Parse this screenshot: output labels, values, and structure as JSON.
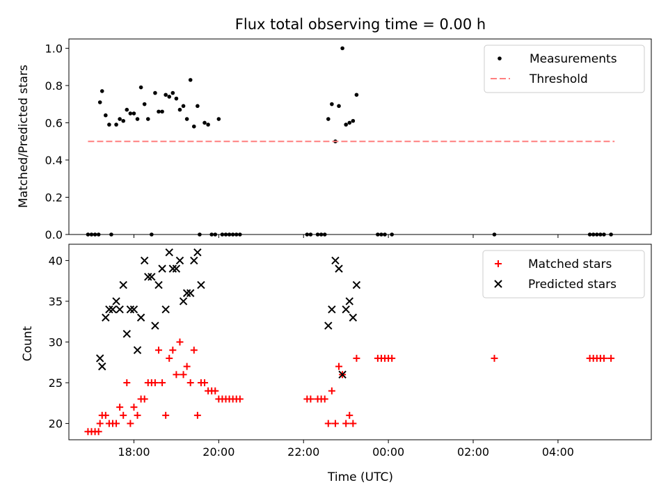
{
  "chart_data": [
    {
      "type": "scatter",
      "title": "Flux total observing time = 0.00 h",
      "xlabel": "",
      "ylabel": "Matched/Predicted stars",
      "ylim": [
        0,
        1.05
      ],
      "xlim": [
        "16:28",
        "06:12"
      ],
      "x_unit": "UTC clock time (past midnight wraps to next day)",
      "x_ticks": [
        "18:00",
        "20:00",
        "22:00",
        "00:00",
        "02:00",
        "04:00"
      ],
      "y_ticks": [
        "0.0",
        "0.2",
        "0.4",
        "0.6",
        "0.8",
        "1.0"
      ],
      "show_x_tick_labels": false,
      "legend": {
        "placement": "top-right",
        "entries": [
          "Measurements",
          "Threshold"
        ]
      },
      "series": [
        {
          "name": "Measurements",
          "marker": "dot",
          "color": "#000000",
          "points": [
            [
              "16:55",
              0
            ],
            [
              "17:00",
              0
            ],
            [
              "17:05",
              0
            ],
            [
              "17:10",
              0
            ],
            [
              "17:12",
              0.71
            ],
            [
              "17:15",
              0.77
            ],
            [
              "17:20",
              0.64
            ],
            [
              "17:25",
              0.59
            ],
            [
              "17:28",
              0
            ],
            [
              "17:35",
              0.59
            ],
            [
              "17:40",
              0.62
            ],
            [
              "17:45",
              0.61
            ],
            [
              "17:50",
              0.67
            ],
            [
              "17:55",
              0.65
            ],
            [
              "18:00",
              0.65
            ],
            [
              "18:05",
              0.62
            ],
            [
              "18:10",
              0.79
            ],
            [
              "18:15",
              0.7
            ],
            [
              "18:20",
              0.62
            ],
            [
              "18:25",
              0
            ],
            [
              "18:30",
              0.76
            ],
            [
              "18:35",
              0.66
            ],
            [
              "18:40",
              0.66
            ],
            [
              "18:45",
              0.75
            ],
            [
              "18:50",
              0.74
            ],
            [
              "18:55",
              0.76
            ],
            [
              "19:00",
              0.73
            ],
            [
              "19:05",
              0.67
            ],
            [
              "19:10",
              0.69
            ],
            [
              "19:15",
              0.62
            ],
            [
              "19:20",
              0.83
            ],
            [
              "19:25",
              0.58
            ],
            [
              "19:30",
              0.69
            ],
            [
              "19:33",
              0
            ],
            [
              "19:40",
              0.6
            ],
            [
              "19:45",
              0.59
            ],
            [
              "19:50",
              0
            ],
            [
              "19:55",
              0
            ],
            [
              "20:00",
              0.62
            ],
            [
              "20:05",
              0
            ],
            [
              "20:10",
              0
            ],
            [
              "20:15",
              0
            ],
            [
              "20:20",
              0
            ],
            [
              "20:25",
              0
            ],
            [
              "20:30",
              0
            ],
            [
              "22:05",
              0
            ],
            [
              "22:10",
              0
            ],
            [
              "22:20",
              0
            ],
            [
              "22:25",
              0
            ],
            [
              "22:30",
              0
            ],
            [
              "22:35",
              0.62
            ],
            [
              "22:40",
              0.7
            ],
            [
              "22:45",
              0.5
            ],
            [
              "22:50",
              0.69
            ],
            [
              "22:55",
              1.0
            ],
            [
              "23:00",
              0.59
            ],
            [
              "23:05",
              0.6
            ],
            [
              "23:10",
              0.61
            ],
            [
              "23:15",
              0.75
            ],
            [
              "23:45",
              0
            ],
            [
              "23:50",
              0
            ],
            [
              "23:55",
              0
            ],
            [
              "00:05",
              0
            ],
            [
              "02:30",
              0
            ],
            [
              "04:45",
              0
            ],
            [
              "04:50",
              0
            ],
            [
              "04:55",
              0
            ],
            [
              "05:00",
              0
            ],
            [
              "05:05",
              0
            ],
            [
              "05:15",
              0
            ]
          ]
        },
        {
          "name": "Threshold",
          "marker": "dashed-line",
          "color": "#ff7f7f",
          "points": [
            [
              "16:55",
              0.5
            ],
            [
              "05:20",
              0.5
            ]
          ]
        }
      ]
    },
    {
      "type": "scatter",
      "title": "",
      "xlabel": "Time (UTC)",
      "ylabel": "Count",
      "ylim": [
        18,
        42
      ],
      "xlim": [
        "16:28",
        "06:12"
      ],
      "x_ticks": [
        "18:00",
        "20:00",
        "22:00",
        "00:00",
        "02:00",
        "04:00"
      ],
      "y_ticks": [
        "20",
        "25",
        "30",
        "35",
        "40"
      ],
      "legend": {
        "placement": "top-right",
        "entries": [
          "Matched stars",
          "Predicted stars"
        ]
      },
      "series": [
        {
          "name": "Matched stars",
          "marker": "plus",
          "color": "#ff0000",
          "points": [
            [
              "16:55",
              19
            ],
            [
              "17:00",
              19
            ],
            [
              "17:05",
              19
            ],
            [
              "17:10",
              19
            ],
            [
              "17:12",
              20
            ],
            [
              "17:15",
              21
            ],
            [
              "17:20",
              21
            ],
            [
              "17:25",
              20
            ],
            [
              "17:30",
              20
            ],
            [
              "17:35",
              20
            ],
            [
              "17:40",
              22
            ],
            [
              "17:45",
              21
            ],
            [
              "17:50",
              25
            ],
            [
              "17:55",
              20
            ],
            [
              "18:00",
              22
            ],
            [
              "18:05",
              21
            ],
            [
              "18:10",
              23
            ],
            [
              "18:15",
              23
            ],
            [
              "18:20",
              25
            ],
            [
              "18:25",
              25
            ],
            [
              "18:30",
              25
            ],
            [
              "18:35",
              29
            ],
            [
              "18:40",
              25
            ],
            [
              "18:45",
              21
            ],
            [
              "18:50",
              28
            ],
            [
              "18:55",
              29
            ],
            [
              "19:00",
              26
            ],
            [
              "19:05",
              30
            ],
            [
              "19:10",
              26
            ],
            [
              "19:15",
              27
            ],
            [
              "19:20",
              25
            ],
            [
              "19:25",
              29
            ],
            [
              "19:30",
              21
            ],
            [
              "19:35",
              25
            ],
            [
              "19:40",
              25
            ],
            [
              "19:45",
              24
            ],
            [
              "19:50",
              24
            ],
            [
              "19:55",
              24
            ],
            [
              "20:00",
              23
            ],
            [
              "20:05",
              23
            ],
            [
              "20:10",
              23
            ],
            [
              "20:15",
              23
            ],
            [
              "20:20",
              23
            ],
            [
              "20:25",
              23
            ],
            [
              "20:30",
              23
            ],
            [
              "22:05",
              23
            ],
            [
              "22:10",
              23
            ],
            [
              "22:20",
              23
            ],
            [
              "22:25",
              23
            ],
            [
              "22:30",
              23
            ],
            [
              "22:35",
              20
            ],
            [
              "22:40",
              24
            ],
            [
              "22:45",
              20
            ],
            [
              "22:50",
              27
            ],
            [
              "22:55",
              26
            ],
            [
              "23:00",
              20
            ],
            [
              "23:05",
              21
            ],
            [
              "23:10",
              20
            ],
            [
              "23:15",
              28
            ],
            [
              "23:45",
              28
            ],
            [
              "23:50",
              28
            ],
            [
              "23:55",
              28
            ],
            [
              "00:00",
              28
            ],
            [
              "00:05",
              28
            ],
            [
              "02:30",
              28
            ],
            [
              "04:45",
              28
            ],
            [
              "04:50",
              28
            ],
            [
              "04:55",
              28
            ],
            [
              "05:00",
              28
            ],
            [
              "05:05",
              28
            ],
            [
              "05:15",
              28
            ]
          ]
        },
        {
          "name": "Predicted stars",
          "marker": "x",
          "color": "#000000",
          "points": [
            [
              "17:12",
              28
            ],
            [
              "17:15",
              27
            ],
            [
              "17:20",
              33
            ],
            [
              "17:25",
              34
            ],
            [
              "17:30",
              34
            ],
            [
              "17:35",
              35
            ],
            [
              "17:40",
              34
            ],
            [
              "17:45",
              37
            ],
            [
              "17:50",
              31
            ],
            [
              "17:55",
              34
            ],
            [
              "18:00",
              34
            ],
            [
              "18:05",
              29
            ],
            [
              "18:10",
              33
            ],
            [
              "18:15",
              40
            ],
            [
              "18:20",
              38
            ],
            [
              "18:25",
              38
            ],
            [
              "18:30",
              32
            ],
            [
              "18:35",
              37
            ],
            [
              "18:40",
              39
            ],
            [
              "18:45",
              34
            ],
            [
              "18:50",
              41
            ],
            [
              "18:55",
              39
            ],
            [
              "19:00",
              39
            ],
            [
              "19:05",
              40
            ],
            [
              "19:10",
              35
            ],
            [
              "19:15",
              36
            ],
            [
              "19:20",
              36
            ],
            [
              "19:25",
              40
            ],
            [
              "19:30",
              41
            ],
            [
              "19:35",
              37
            ],
            [
              "22:35",
              32
            ],
            [
              "22:40",
              34
            ],
            [
              "22:45",
              40
            ],
            [
              "22:50",
              39
            ],
            [
              "22:55",
              26
            ],
            [
              "23:00",
              34
            ],
            [
              "23:05",
              35
            ],
            [
              "23:10",
              33
            ],
            [
              "23:15",
              37
            ]
          ]
        }
      ]
    }
  ]
}
